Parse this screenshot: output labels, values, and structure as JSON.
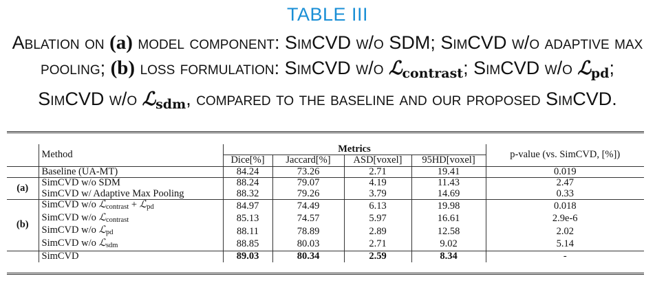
{
  "table_label": "TABLE III",
  "caption": {
    "p1": "Ablation on ",
    "p2": "(a)",
    "p3": " model component: SimCVD w/o SDM; SimCVD w/o adaptive max pooling; ",
    "p4": "(b)",
    "p5": " loss formulation: SimCVD w/o ",
    "sym": "ℒ",
    "sub_contrast": "contrast",
    "p6": "; SimCVD w/o ",
    "sub_pd": "pd",
    "p7": "; SimCVD w/o ",
    "sub_sdm": "sdm",
    "p8": ", compared to the baseline and our proposed SimCVD."
  },
  "table": {
    "headers": {
      "method": "Method",
      "metrics": "Metrics",
      "dice": "Dice[%]",
      "jaccard": "Jaccard[%]",
      "asd": "ASD[voxel]",
      "hd95": "95HD[voxel]",
      "pvalue": "p-value (vs. SimCVD, [%])"
    },
    "baseline": {
      "method": "Baseline (UA-MT)",
      "dice": "84.24",
      "jaccard": "73.26",
      "asd": "2.71",
      "hd95": "19.41",
      "p": "0.019"
    },
    "group_a": {
      "label": "(a)",
      "rows": [
        {
          "method": "SimCVD w/o SDM",
          "dice": "88.24",
          "jaccard": "79.07",
          "asd": "4.19",
          "hd95": "11.43",
          "p": "2.47"
        },
        {
          "method": "SimCVD w/ Adaptive Max Pooling",
          "dice": "88.32",
          "jaccard": "79.26",
          "asd": "3.79",
          "hd95": "14.69",
          "p": "0.33"
        }
      ]
    },
    "group_b": {
      "label": "(b)",
      "prefix": "SimCVD w/o ",
      "sym": "ℒ",
      "plus": " + ",
      "sub_contrast": "contrast",
      "sub_pd": "pd",
      "sub_sdm": "sdm",
      "rows": [
        {
          "dice": "84.97",
          "jaccard": "74.49",
          "asd": "6.13",
          "hd95": "19.98",
          "p": "0.018"
        },
        {
          "dice": "85.13",
          "jaccard": "74.57",
          "asd": "5.97",
          "hd95": "16.61",
          "p": "2.9e-6"
        },
        {
          "dice": "88.11",
          "jaccard": "78.89",
          "asd": "2.89",
          "hd95": "12.58",
          "p": "2.02"
        },
        {
          "dice": "88.85",
          "jaccard": "80.03",
          "asd": "2.71",
          "hd95": "9.02",
          "p": "5.14"
        }
      ]
    },
    "simcvd": {
      "method": "SimCVD",
      "dice": "89.03",
      "jaccard": "80.34",
      "asd": "2.59",
      "hd95": "8.34",
      "p": "-"
    }
  }
}
